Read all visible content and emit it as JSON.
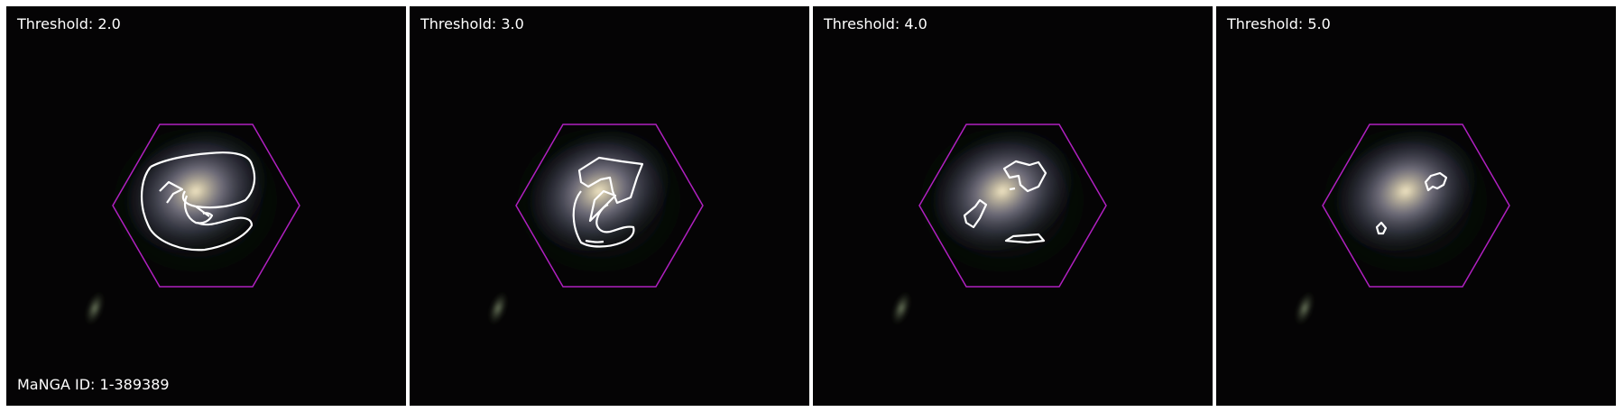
{
  "panels": [
    {
      "threshold_label": "Threshold: 2.0",
      "threshold": 2.0
    },
    {
      "threshold_label": "Threshold: 3.0",
      "threshold": 3.0
    },
    {
      "threshold_label": "Threshold: 4.0",
      "threshold": 4.0
    },
    {
      "threshold_label": "Threshold: 5.0",
      "threshold": 5.0
    }
  ],
  "manga_id_label": "MaNGA ID: 1-389389",
  "colors": {
    "hexagon": "#b020c0",
    "contour": "#ffffff",
    "background": "#050405",
    "galaxy_core": "#e8dcc0",
    "galaxy_halo": "#6a6a8a",
    "companion": "#7a8a6a"
  }
}
